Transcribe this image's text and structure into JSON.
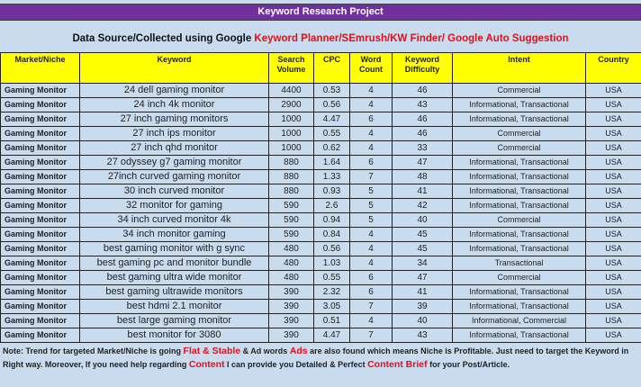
{
  "title": "Keyword Research Project",
  "subtitle": {
    "prefix": "Data Source/Collected using Google ",
    "highlight": "Keyword Planner/SEmrush/KW Finder/ Google Auto Suggestion"
  },
  "columns": [
    "Market/Niche",
    "Keyword",
    "Search Volume",
    "CPC",
    "Word Count",
    "Keyword Difficulty",
    "Intent",
    "Country"
  ],
  "rows": [
    [
      "Gaming Monitor",
      "24 dell gaming monitor",
      "4400",
      "0.53",
      "4",
      "46",
      "Commercial",
      "USA"
    ],
    [
      "Gaming Monitor",
      "24 inch 4k monitor",
      "2900",
      "0.56",
      "4",
      "43",
      "Informational, Transactional",
      "USA"
    ],
    [
      "Gaming Monitor",
      "27 inch gaming monitors",
      "1000",
      "4.47",
      "6",
      "46",
      "Informational, Transactional",
      "USA"
    ],
    [
      "Gaming Monitor",
      "27 inch ips monitor",
      "1000",
      "0.55",
      "4",
      "46",
      "Commercial",
      "USA"
    ],
    [
      "Gaming Monitor",
      "27 inch qhd monitor",
      "1000",
      "0.62",
      "4",
      "33",
      "Commercial",
      "USA"
    ],
    [
      "Gaming Monitor",
      "27 odyssey g7 gaming monitor",
      "880",
      "1.64",
      "6",
      "47",
      "Informational, Transactional",
      "USA"
    ],
    [
      "Gaming Monitor",
      "27inch curved gaming monitor",
      "880",
      "1.33",
      "7",
      "48",
      "Informational, Transactional",
      "USA"
    ],
    [
      "Gaming Monitor",
      "30 inch curved monitor",
      "880",
      "0.93",
      "5",
      "41",
      "Informational, Transactional",
      "USA"
    ],
    [
      "Gaming Monitor",
      "32 monitor for gaming",
      "590",
      "2.6",
      "5",
      "42",
      "Informational, Transactional",
      "USA"
    ],
    [
      "Gaming Monitor",
      "34 inch curved monitor 4k",
      "590",
      "0.94",
      "5",
      "40",
      "Commercial",
      "USA"
    ],
    [
      "Gaming Monitor",
      "34 inch monitor gaming",
      "590",
      "0.84",
      "4",
      "45",
      "Informational, Transactional",
      "USA"
    ],
    [
      "Gaming Monitor",
      "best gaming monitor with g sync",
      "480",
      "0.56",
      "4",
      "45",
      "Informational, Transactional",
      "USA"
    ],
    [
      "Gaming Monitor",
      "best gaming pc and monitor bundle",
      "480",
      "1.03",
      "4",
      "34",
      "Transactional",
      "USA"
    ],
    [
      "Gaming Monitor",
      "best gaming ultra wide monitor",
      "480",
      "0.55",
      "6",
      "47",
      "Commercial",
      "USA"
    ],
    [
      "Gaming Monitor",
      "best gaming ultrawide monitors",
      "390",
      "2.32",
      "6",
      "41",
      "Informational, Transactional",
      "USA"
    ],
    [
      "Gaming Monitor",
      "best hdmi 2.1 monitor",
      "390",
      "3.05",
      "7",
      "39",
      "Informational, Transactional",
      "USA"
    ],
    [
      "Gaming Monitor",
      "best large gaming monitor",
      "390",
      "0.51",
      "4",
      "40",
      "Informational, Commercial",
      "USA"
    ],
    [
      "Gaming Monitor",
      "best monitor for 3080",
      "390",
      "4.47",
      "7",
      "43",
      "Informational, Transactional",
      "USA"
    ]
  ],
  "note": {
    "p1": "Note: Trend for targeted Market/Niche is going ",
    "h1": "Flat & Stable",
    "p2": " & Ad words ",
    "h2": "Ads",
    "p3": " are also found which means Niche is Profitable. Just need to target the Keyword in Right way. Moreover, If you need help regarding ",
    "h3": "Content",
    "p4": " I can provide you Detailed & Perfect ",
    "h4": "Content Brief",
    "p5": " for your Post/Article."
  },
  "colors": {
    "title_bar": "#7030a0",
    "header": "#ffff00",
    "highlight": "#e0101a",
    "background": "#c9dbef"
  }
}
